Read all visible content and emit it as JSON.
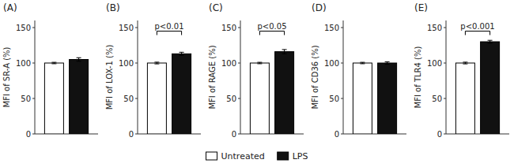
{
  "chart_data": [
    {
      "type": "bar",
      "title": "(A)",
      "y_label": "MFI of SR-A (%)",
      "categories": [
        null
      ],
      "series": [
        {
          "name": "Untreated",
          "color": "#ffffff",
          "values": [
            100
          ],
          "errors": [
            1.0
          ]
        },
        {
          "name": "LPS",
          "color": "#111111",
          "values": [
            105
          ],
          "errors": [
            2.5
          ]
        }
      ],
      "ylim": [
        0,
        160
      ],
      "yticks": [
        0,
        50,
        100,
        150
      ],
      "tick_labels": "y",
      "legend": "bottom"
    },
    {
      "type": "bar",
      "title": "(B)",
      "y_label": "MFI of LOX-1 (%)",
      "categories": [
        null
      ],
      "series": [
        {
          "name": "Untreated",
          "color": "#ffffff",
          "values": [
            100
          ],
          "errors": [
            1.2
          ]
        },
        {
          "name": "LPS",
          "color": "#111111",
          "values": [
            113
          ],
          "errors": [
            2.2
          ]
        }
      ],
      "annotations": [
        {
          "text": "p<0.01",
          "y": 145
        }
      ],
      "ylim": [
        0,
        160
      ],
      "yticks": [
        0,
        50,
        100,
        150
      ],
      "tick_labels": "y"
    },
    {
      "type": "bar",
      "title": "(C)",
      "y_label": "MFI of RAGE (%)",
      "categories": [
        null
      ],
      "series": [
        {
          "name": "Untreated",
          "color": "#ffffff",
          "values": [
            100
          ],
          "errors": [
            1.0
          ]
        },
        {
          "name": "LPS",
          "color": "#111111",
          "values": [
            116
          ],
          "errors": [
            3.0
          ]
        }
      ],
      "annotations": [
        {
          "text": "p<0.05",
          "y": 145
        }
      ],
      "ylim": [
        0,
        160
      ],
      "yticks": [
        0,
        50,
        100,
        150
      ],
      "tick_labels": "y"
    },
    {
      "type": "bar",
      "title": "(D)",
      "y_label": "MFI of CD36 (%)",
      "categories": [
        null
      ],
      "series": [
        {
          "name": "Untreated",
          "color": "#ffffff",
          "values": [
            100
          ],
          "errors": [
            1.0
          ]
        },
        {
          "name": "LPS",
          "color": "#111111",
          "values": [
            100
          ],
          "errors": [
            1.8
          ]
        }
      ],
      "ylim": [
        0,
        160
      ],
      "yticks": [
        0,
        50,
        100,
        150
      ],
      "tick_labels": "y"
    },
    {
      "type": "bar",
      "title": "(E)",
      "y_label": "MFI of TLR4 (%)",
      "categories": [
        null
      ],
      "series": [
        {
          "name": "Untreated",
          "color": "#ffffff",
          "values": [
            100
          ],
          "errors": [
            1.2
          ]
        },
        {
          "name": "LPS",
          "color": "#111111",
          "values": [
            130
          ],
          "errors": [
            2.0
          ]
        }
      ],
      "annotations": [
        {
          "text": "p<0.001",
          "y": 145
        }
      ],
      "ylim": [
        0,
        160
      ],
      "yticks": [
        0,
        50,
        100,
        150
      ],
      "tick_labels": "y"
    }
  ]
}
